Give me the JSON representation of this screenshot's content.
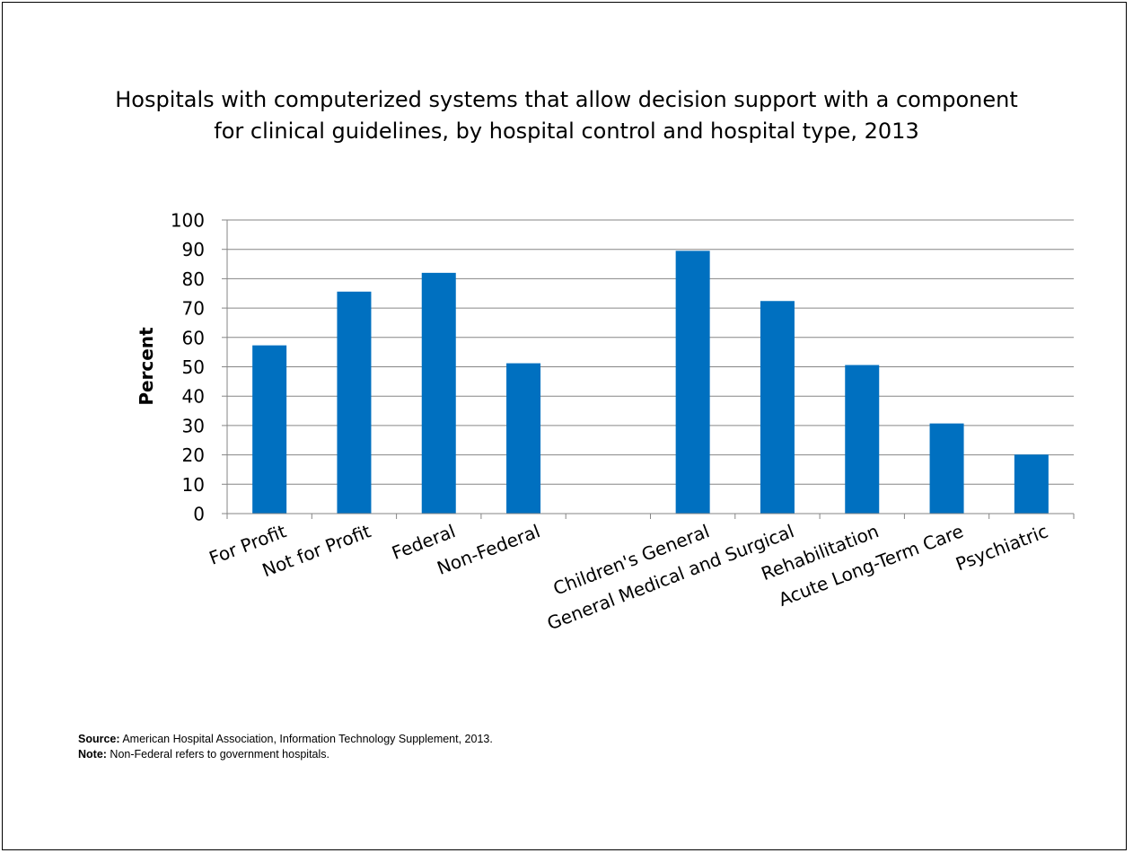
{
  "chart_data": {
    "type": "bar",
    "title_lines": [
      "Hospitals with computerized systems that allow decision support with a component",
      "for clinical guidelines, by hospital control and hospital type, 2013"
    ],
    "xlabel": "",
    "ylabel": "Percent",
    "ylim": [
      0,
      100
    ],
    "yticks": [
      0,
      10,
      20,
      30,
      40,
      50,
      60,
      70,
      80,
      90,
      100
    ],
    "grid": true,
    "categories": [
      "For Profit",
      "Not for Profit",
      "Federal",
      "Non-Federal",
      "",
      "Children's General",
      "General Medical and Surgical",
      "Rehabilitation",
      "Acute Long-Term Care",
      "Psychiatric"
    ],
    "values": [
      57.3,
      75.6,
      82.0,
      51.2,
      null,
      89.5,
      72.4,
      50.6,
      30.7,
      20.1
    ],
    "bar_color": "#0070C0"
  },
  "footnotes": {
    "source_label": "Source:",
    "source_text": " American Hospital Association, Information Technology Supplement, 2013.",
    "note_label": "Note:",
    "note_text": " Non-Federal refers to government hospitals."
  }
}
